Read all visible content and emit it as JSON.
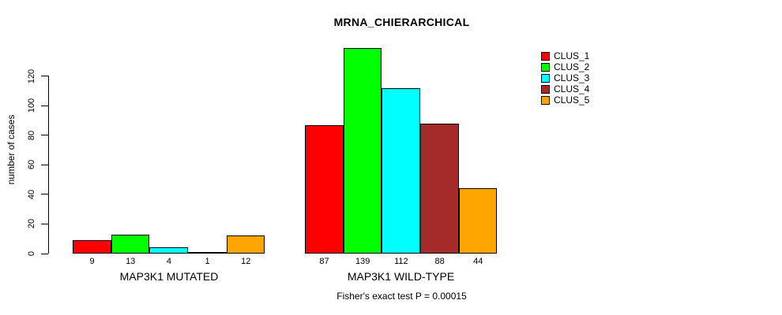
{
  "chart_data": {
    "type": "bar",
    "title": "MRNA_CHIERARCHICAL",
    "ylabel": "number of cases",
    "xlabel": "",
    "groups": [
      "MAP3K1 MUTATED",
      "MAP3K1 WILD-TYPE"
    ],
    "series": [
      {
        "name": "CLUS_1",
        "color": "#FF0000",
        "values": [
          9,
          87
        ]
      },
      {
        "name": "CLUS_2",
        "color": "#00FF00",
        "values": [
          13,
          139
        ]
      },
      {
        "name": "CLUS_3",
        "color": "#00FFFF",
        "values": [
          4,
          112
        ]
      },
      {
        "name": "CLUS_4",
        "color": "#A52A2A",
        "values": [
          1,
          88
        ]
      },
      {
        "name": "CLUS_5",
        "color": "#FFA500",
        "values": [
          12,
          44
        ]
      }
    ],
    "yticks": [
      0,
      20,
      40,
      60,
      80,
      100,
      120
    ],
    "ylim": [
      0,
      140
    ],
    "grid": false,
    "legend_position": "top-right",
    "legend_entries": [
      "CLUS_1",
      "CLUS_2",
      "CLUS_3",
      "CLUS_4",
      "CLUS_5"
    ],
    "bar_value_labels": true,
    "annotation": "Fisher's exact test P = 0.00015"
  }
}
